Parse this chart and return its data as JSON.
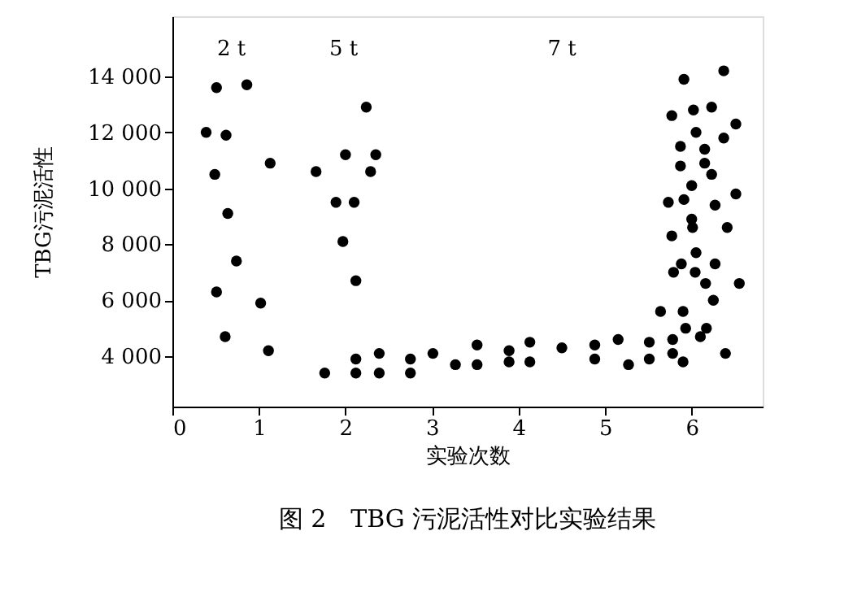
{
  "chart_data": {
    "type": "scatter",
    "title": "图 2　TBG 污泥活性对比实验结果",
    "xlabel": "实验次数",
    "ylabel": "TBG污泥活性",
    "x": [
      0.51,
      0.86,
      0.39,
      0.62,
      1.13,
      0.49,
      0.64,
      0.74,
      0.51,
      1.02,
      0.61,
      1.11,
      1.66,
      2.0,
      2.24,
      2.35,
      2.29,
      1.89,
      2.1,
      1.97,
      2.12,
      1.76,
      2.12,
      2.12,
      2.39,
      2.39,
      2.75,
      2.75,
      3.01,
      3.27,
      3.52,
      3.52,
      3.89,
      3.89,
      4.13,
      4.13,
      4.5,
      4.88,
      4.88,
      5.15,
      5.27,
      5.51,
      5.51,
      5.78,
      5.78,
      5.9,
      6.39,
      5.64,
      5.9,
      5.93,
      6.17,
      6.1,
      6.25,
      6.55,
      6.16,
      6.04,
      5.79,
      5.88,
      6.27,
      6.05,
      5.77,
      6.01,
      6.0,
      6.41,
      5.73,
      5.91,
      6.27,
      6.51,
      6.0,
      6.23,
      5.87,
      6.15,
      6.15,
      5.87,
      6.05,
      6.37,
      6.51,
      5.77,
      6.02,
      6.23,
      5.91,
      6.37
    ],
    "series": [
      {
        "color": "#000000",
        "values": [
          13600,
          13700,
          12000,
          11900,
          10900,
          10500,
          9100,
          7400,
          6300,
          5900,
          4700,
          4200,
          10600,
          11200,
          12900,
          11200,
          10600,
          9500,
          9500,
          8100,
          6700,
          3400,
          3400,
          3900,
          3400,
          4100,
          3900,
          3400,
          4100,
          3700,
          4400,
          3700,
          4200,
          3800,
          4500,
          3800,
          4300,
          4400,
          3900,
          4600,
          3700,
          4500,
          3900,
          4600,
          4100,
          3800,
          4100,
          5600,
          5600,
          5000,
          5000,
          4700,
          6000,
          6600,
          6600,
          7000,
          7000,
          7300,
          7300,
          7700,
          8300,
          8600,
          8900,
          8600,
          9500,
          9600,
          9400,
          9800,
          10100,
          10500,
          10800,
          10900,
          11400,
          11500,
          12000,
          11800,
          12300,
          12600,
          12800,
          12900,
          13900,
          14200
        ]
      }
    ],
    "xlim": [
      0,
      6.82
    ],
    "xticks": [
      0,
      1,
      2,
      3,
      4,
      5,
      6
    ],
    "ylim": [
      2200,
      16150
    ],
    "yticks": [
      {
        "value": 4000,
        "label": "4 000"
      },
      {
        "value": 6000,
        "label": "6 000"
      },
      {
        "value": 8000,
        "label": "8 000"
      },
      {
        "value": 10000,
        "label": "10 000"
      },
      {
        "value": 12000,
        "label": "12 000"
      },
      {
        "value": 14000,
        "label": "14 000"
      }
    ],
    "annotations": [
      "2 t",
      "5 t",
      "7 t"
    ],
    "marker": "circle",
    "grid": false,
    "legend": false
  }
}
